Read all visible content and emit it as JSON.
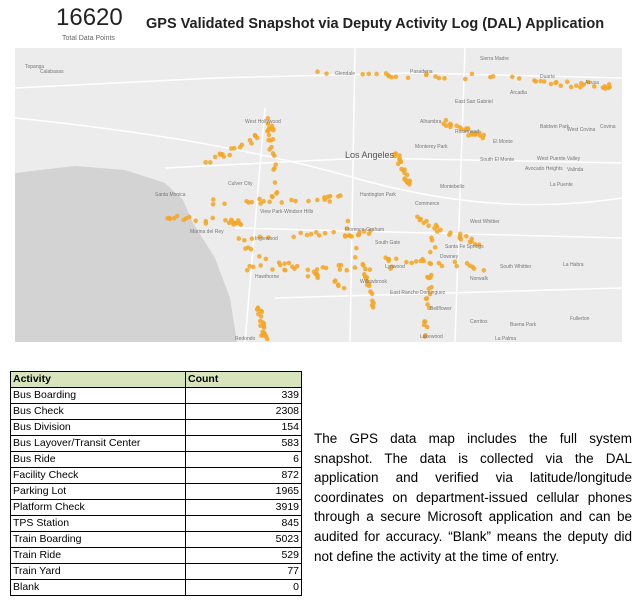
{
  "header": {
    "total": "16620",
    "total_label": "Total Data Points",
    "title": "GPS Validated Snapshot via Deputy Activity Log (DAL) Application"
  },
  "map": {
    "labels": [
      "Calabasas",
      "Glendale",
      "Pasadena",
      "Sierra Madre",
      "Duarte",
      "Azusa",
      "Arcadia",
      "East San Gabriel",
      "Alhambra",
      "Rosemead",
      "El Monte",
      "Baldwin Park",
      "West Covina",
      "Covina",
      "West Hollywood",
      "Los Angeles",
      "Monterey Park",
      "Montebello",
      "South El Monte",
      "West Puente Valley",
      "Avocado Heights",
      "Valinda",
      "La Puente",
      "Culver City",
      "Santa Monica",
      "Commerce",
      "Huntington Park",
      "West Whittier",
      "View Park-Windsor Hills",
      "Inglewood",
      "Florence-Graham",
      "South Gate",
      "Santa Fe Springs",
      "Downey",
      "Hawthorne",
      "Lynwood",
      "Norwalk",
      "South Whittier",
      "La Habra",
      "Willowbrook",
      "East Rancho Dominguez",
      "Bellflower",
      "Cerritos",
      "Buena Park",
      "Fullerton",
      "Redondo",
      "Lakewood",
      "La Palma",
      "Topanga",
      "Marina del Rey"
    ]
  },
  "table": {
    "columns": [
      "Activity",
      "Count"
    ],
    "rows": [
      [
        "Bus Boarding",
        "339"
      ],
      [
        "Bus Check",
        "2308"
      ],
      [
        "Bus Division",
        "154"
      ],
      [
        "Bus Layover/Transit Center",
        "583"
      ],
      [
        "Bus Ride",
        "6"
      ],
      [
        "Facility Check",
        "872"
      ],
      [
        "Parking Lot",
        "1965"
      ],
      [
        "Platform Check",
        "3919"
      ],
      [
        "TPS Station",
        "845"
      ],
      [
        "Train Boarding",
        "5023"
      ],
      [
        "Train Ride",
        "529"
      ],
      [
        "Train Yard",
        "77"
      ],
      [
        "Blank",
        "0"
      ]
    ]
  },
  "note": "The GPS data map includes the full system snapshot. The data is collected via the DAL application and verified via latitude/longitude coordinates on department-issued cellular phones through a secure Microsoft application and can be audited for accuracy. “Blank” means the deputy did not define the activity at the time of entry."
}
